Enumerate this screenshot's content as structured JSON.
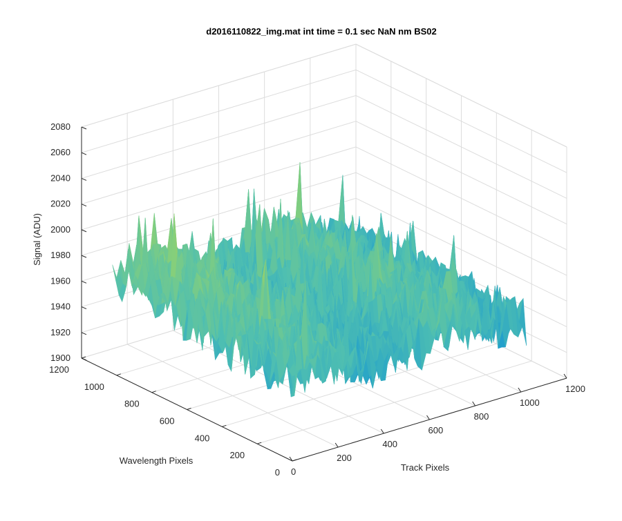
{
  "chart_data": {
    "type": "surface",
    "title": "d2016110822_img.mat int time = 0.1 sec  NaN nm BS02",
    "xlabel": "Track Pixels",
    "ylabel": "Wavelength Pixels",
    "zlabel": "Signal (ADU)",
    "x_ticks": [
      "0",
      "200",
      "400",
      "600",
      "800",
      "1000",
      "1200"
    ],
    "y_ticks": [
      "0",
      "200",
      "400",
      "600",
      "800",
      "1000",
      "1200"
    ],
    "z_ticks": [
      "1900",
      "1920",
      "1940",
      "1960",
      "1980",
      "2000",
      "2020",
      "2040",
      "2060",
      "2080"
    ],
    "xlim": [
      0,
      1200
    ],
    "ylim": [
      0,
      1200
    ],
    "zlim": [
      1900,
      2080
    ],
    "grid": true,
    "colormap": [
      "#0072bd",
      "#1a9ad0",
      "#4fbfb1",
      "#86cf7a",
      "#c7c944",
      "#f2c637"
    ],
    "surface": {
      "track_range": [
        0,
        1024
      ],
      "wavelength_range": [
        0,
        1024
      ],
      "typical_signal": 1960,
      "signal_min_approx": 1905,
      "signal_max_approx": 2060
    }
  }
}
